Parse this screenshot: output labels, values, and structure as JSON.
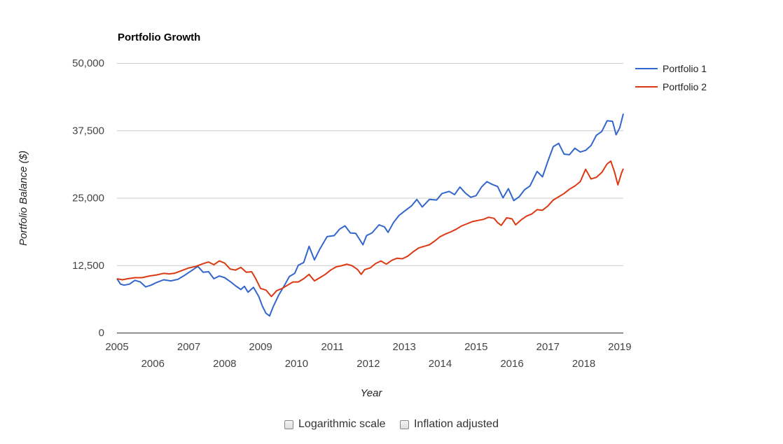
{
  "chart_data": {
    "type": "line",
    "title": "Portfolio Growth",
    "xlabel": "Year",
    "ylabel": "Portfolio Balance ($)",
    "ylim": [
      0,
      50000
    ],
    "y_ticks": [
      {
        "value": 0,
        "label": "0"
      },
      {
        "value": 12500,
        "label": "12,500"
      },
      {
        "value": 25000,
        "label": "25,000"
      },
      {
        "value": 37500,
        "label": "37,500"
      },
      {
        "value": 50000,
        "label": "50,000"
      }
    ],
    "x_ticks": [
      {
        "value": 2005,
        "label": "2005"
      },
      {
        "value": 2006,
        "label": "2006"
      },
      {
        "value": 2007,
        "label": "2007"
      },
      {
        "value": 2008,
        "label": "2008"
      },
      {
        "value": 2009,
        "label": "2009"
      },
      {
        "value": 2010,
        "label": "2010"
      },
      {
        "value": 2011,
        "label": "2011"
      },
      {
        "value": 2012,
        "label": "2012"
      },
      {
        "value": 2013,
        "label": "2013"
      },
      {
        "value": 2014,
        "label": "2014"
      },
      {
        "value": 2015,
        "label": "2015"
      },
      {
        "value": 2016,
        "label": "2016"
      },
      {
        "value": 2017,
        "label": "2017"
      },
      {
        "value": 2018,
        "label": "2018"
      },
      {
        "value": 2019,
        "label": "2019"
      }
    ],
    "xlim": [
      2005,
      2019.1
    ],
    "grid": true,
    "legend_position": "right",
    "series": [
      {
        "name": "Portfolio 1",
        "color": "#3366cc",
        "points": [
          [
            2005.0,
            10000
          ],
          [
            2005.1,
            9000
          ],
          [
            2005.2,
            8800
          ],
          [
            2005.35,
            9000
          ],
          [
            2005.5,
            9700
          ],
          [
            2005.65,
            9400
          ],
          [
            2005.8,
            8500
          ],
          [
            2005.95,
            8800
          ],
          [
            2006.1,
            9300
          ],
          [
            2006.3,
            9800
          ],
          [
            2006.5,
            9600
          ],
          [
            2006.7,
            9900
          ],
          [
            2006.9,
            10700
          ],
          [
            2007.1,
            11600
          ],
          [
            2007.25,
            12300
          ],
          [
            2007.4,
            11200
          ],
          [
            2007.55,
            11300
          ],
          [
            2007.7,
            10000
          ],
          [
            2007.85,
            10500
          ],
          [
            2008.0,
            10200
          ],
          [
            2008.15,
            9500
          ],
          [
            2008.3,
            8700
          ],
          [
            2008.45,
            8000
          ],
          [
            2008.55,
            8600
          ],
          [
            2008.65,
            7500
          ],
          [
            2008.8,
            8400
          ],
          [
            2008.95,
            6700
          ],
          [
            2009.05,
            4900
          ],
          [
            2009.15,
            3600
          ],
          [
            2009.25,
            3100
          ],
          [
            2009.35,
            4800
          ],
          [
            2009.5,
            6900
          ],
          [
            2009.65,
            8600
          ],
          [
            2009.8,
            10400
          ],
          [
            2009.95,
            11000
          ],
          [
            2010.05,
            12500
          ],
          [
            2010.2,
            13000
          ],
          [
            2010.35,
            16000
          ],
          [
            2010.5,
            13500
          ],
          [
            2010.65,
            15500
          ],
          [
            2010.85,
            17800
          ],
          [
            2011.05,
            18000
          ],
          [
            2011.2,
            19200
          ],
          [
            2011.35,
            19800
          ],
          [
            2011.5,
            18500
          ],
          [
            2011.65,
            18400
          ],
          [
            2011.85,
            16300
          ],
          [
            2011.95,
            18000
          ],
          [
            2012.1,
            18500
          ],
          [
            2012.3,
            20000
          ],
          [
            2012.45,
            19600
          ],
          [
            2012.55,
            18600
          ],
          [
            2012.7,
            20400
          ],
          [
            2012.85,
            21700
          ],
          [
            2013.0,
            22500
          ],
          [
            2013.2,
            23500
          ],
          [
            2013.35,
            24700
          ],
          [
            2013.5,
            23300
          ],
          [
            2013.7,
            24700
          ],
          [
            2013.9,
            24600
          ],
          [
            2014.05,
            25800
          ],
          [
            2014.25,
            26200
          ],
          [
            2014.4,
            25600
          ],
          [
            2014.55,
            27000
          ],
          [
            2014.7,
            25900
          ],
          [
            2014.85,
            25100
          ],
          [
            2015.0,
            25400
          ],
          [
            2015.15,
            27000
          ],
          [
            2015.3,
            28000
          ],
          [
            2015.45,
            27500
          ],
          [
            2015.6,
            27100
          ],
          [
            2015.75,
            25000
          ],
          [
            2015.9,
            26700
          ],
          [
            2016.05,
            24500
          ],
          [
            2016.2,
            25200
          ],
          [
            2016.35,
            26500
          ],
          [
            2016.5,
            27200
          ],
          [
            2016.7,
            29900
          ],
          [
            2016.85,
            28900
          ],
          [
            2017.0,
            31800
          ],
          [
            2017.15,
            34500
          ],
          [
            2017.3,
            35100
          ],
          [
            2017.45,
            33100
          ],
          [
            2017.6,
            33000
          ],
          [
            2017.75,
            34200
          ],
          [
            2017.9,
            33500
          ],
          [
            2018.05,
            33800
          ],
          [
            2018.2,
            34700
          ],
          [
            2018.35,
            36600
          ],
          [
            2018.5,
            37300
          ],
          [
            2018.65,
            39300
          ],
          [
            2018.8,
            39200
          ],
          [
            2018.9,
            36700
          ],
          [
            2019.0,
            38000
          ],
          [
            2019.1,
            40600
          ]
        ]
      },
      {
        "name": "Portfolio 2",
        "color": "#dc3912",
        "points": [
          [
            2005.0,
            10000
          ],
          [
            2005.15,
            9800
          ],
          [
            2005.3,
            10000
          ],
          [
            2005.5,
            10200
          ],
          [
            2005.7,
            10200
          ],
          [
            2005.9,
            10500
          ],
          [
            2006.1,
            10700
          ],
          [
            2006.3,
            11000
          ],
          [
            2006.45,
            10900
          ],
          [
            2006.6,
            11000
          ],
          [
            2006.8,
            11500
          ],
          [
            2007.0,
            12000
          ],
          [
            2007.2,
            12300
          ],
          [
            2007.4,
            12800
          ],
          [
            2007.55,
            13100
          ],
          [
            2007.7,
            12600
          ],
          [
            2007.85,
            13300
          ],
          [
            2008.0,
            12900
          ],
          [
            2008.15,
            11800
          ],
          [
            2008.3,
            11600
          ],
          [
            2008.45,
            12100
          ],
          [
            2008.6,
            11200
          ],
          [
            2008.75,
            11300
          ],
          [
            2008.85,
            10200
          ],
          [
            2009.0,
            8200
          ],
          [
            2009.15,
            7900
          ],
          [
            2009.3,
            6700
          ],
          [
            2009.45,
            7800
          ],
          [
            2009.6,
            8200
          ],
          [
            2009.75,
            8800
          ],
          [
            2009.9,
            9400
          ],
          [
            2010.05,
            9400
          ],
          [
            2010.2,
            10000
          ],
          [
            2010.35,
            10800
          ],
          [
            2010.5,
            9600
          ],
          [
            2010.65,
            10200
          ],
          [
            2010.8,
            10800
          ],
          [
            2010.95,
            11600
          ],
          [
            2011.1,
            12200
          ],
          [
            2011.25,
            12400
          ],
          [
            2011.4,
            12700
          ],
          [
            2011.55,
            12400
          ],
          [
            2011.7,
            11700
          ],
          [
            2011.8,
            10800
          ],
          [
            2011.9,
            11700
          ],
          [
            2012.05,
            12000
          ],
          [
            2012.2,
            12800
          ],
          [
            2012.35,
            13300
          ],
          [
            2012.5,
            12700
          ],
          [
            2012.65,
            13400
          ],
          [
            2012.8,
            13800
          ],
          [
            2012.95,
            13700
          ],
          [
            2013.1,
            14200
          ],
          [
            2013.25,
            15000
          ],
          [
            2013.4,
            15700
          ],
          [
            2013.55,
            16000
          ],
          [
            2013.7,
            16300
          ],
          [
            2013.85,
            17000
          ],
          [
            2014.0,
            17800
          ],
          [
            2014.15,
            18300
          ],
          [
            2014.3,
            18700
          ],
          [
            2014.45,
            19200
          ],
          [
            2014.6,
            19800
          ],
          [
            2014.75,
            20200
          ],
          [
            2014.9,
            20600
          ],
          [
            2015.05,
            20800
          ],
          [
            2015.2,
            21000
          ],
          [
            2015.35,
            21400
          ],
          [
            2015.5,
            21200
          ],
          [
            2015.6,
            20400
          ],
          [
            2015.7,
            19900
          ],
          [
            2015.85,
            21300
          ],
          [
            2016.0,
            21100
          ],
          [
            2016.1,
            20000
          ],
          [
            2016.25,
            20900
          ],
          [
            2016.4,
            21600
          ],
          [
            2016.55,
            22000
          ],
          [
            2016.7,
            22800
          ],
          [
            2016.85,
            22700
          ],
          [
            2017.0,
            23500
          ],
          [
            2017.15,
            24600
          ],
          [
            2017.3,
            25200
          ],
          [
            2017.45,
            25800
          ],
          [
            2017.6,
            26600
          ],
          [
            2017.75,
            27200
          ],
          [
            2017.9,
            28000
          ],
          [
            2018.05,
            30300
          ],
          [
            2018.2,
            28500
          ],
          [
            2018.35,
            28800
          ],
          [
            2018.5,
            29700
          ],
          [
            2018.65,
            31300
          ],
          [
            2018.75,
            31800
          ],
          [
            2018.85,
            29900
          ],
          [
            2018.95,
            27400
          ],
          [
            2019.05,
            29600
          ],
          [
            2019.1,
            30400
          ]
        ]
      }
    ]
  },
  "controls": {
    "log_scale_label": "Logarithmic scale",
    "inflation_label": "Inflation adjusted"
  }
}
